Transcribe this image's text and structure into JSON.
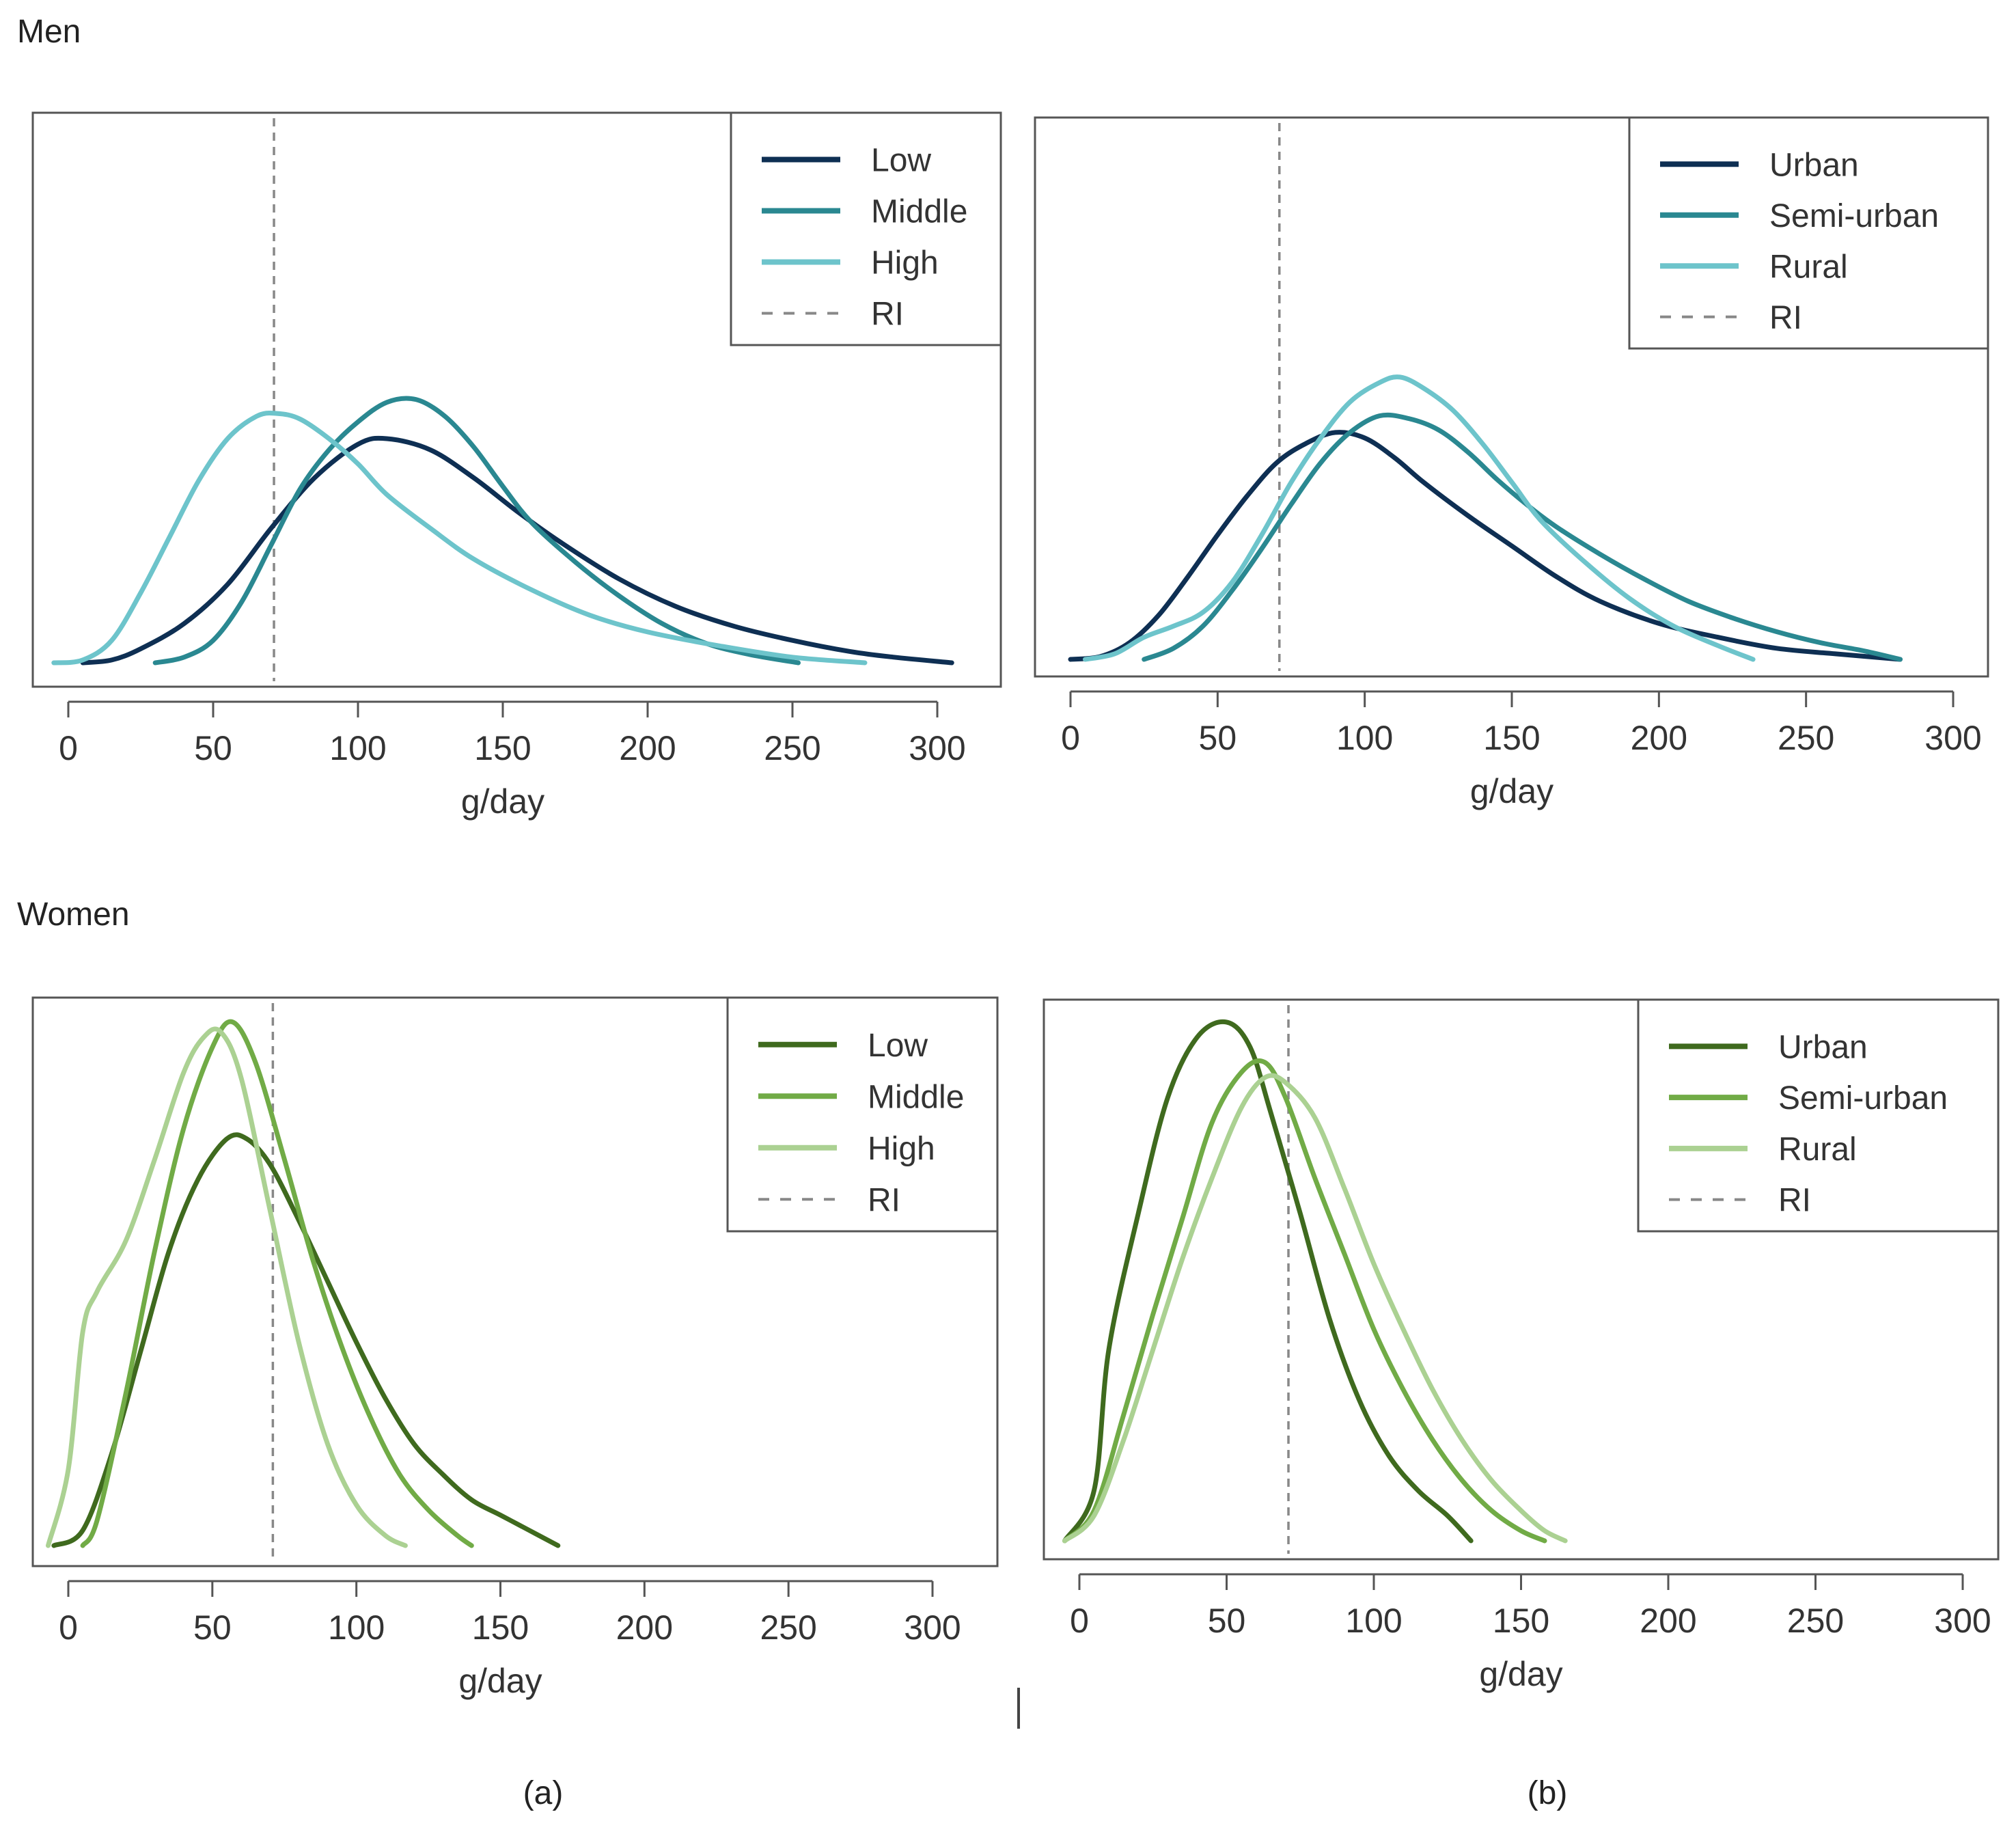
{
  "figure": {
    "section_men": "Men",
    "section_women": "Women",
    "caption_a": "(a)",
    "caption_b": "(b)"
  },
  "chart_data": [
    {
      "id": "men_a",
      "type": "line",
      "title": "",
      "xlabel": "g/day",
      "ylabel": "",
      "xlim": [
        0,
        300
      ],
      "xticks": [
        0,
        50,
        100,
        150,
        200,
        250,
        300
      ],
      "ylim": [
        0,
        1
      ],
      "reference_line": {
        "name": "RI",
        "x": 71
      },
      "legend": [
        "Low",
        "Middle",
        "High",
        "RI"
      ],
      "legend_position": "top-right",
      "series": [
        {
          "name": "Low",
          "color": "#0e2f53",
          "x": [
            5,
            15,
            25,
            40,
            55,
            70,
            85,
            100,
            110,
            125,
            140,
            155,
            170,
            190,
            210,
            230,
            250,
            270,
            285,
            305
          ],
          "y": [
            0,
            0.01,
            0.05,
            0.14,
            0.28,
            0.48,
            0.66,
            0.78,
            0.8,
            0.76,
            0.66,
            0.54,
            0.43,
            0.3,
            0.2,
            0.13,
            0.08,
            0.04,
            0.02,
            0
          ]
        },
        {
          "name": "Middle",
          "color": "#2a8891",
          "x": [
            30,
            40,
            50,
            60,
            70,
            80,
            90,
            100,
            110,
            120,
            130,
            140,
            150,
            160,
            175,
            190,
            205,
            220,
            235,
            252
          ],
          "y": [
            0,
            0.02,
            0.08,
            0.22,
            0.42,
            0.62,
            0.76,
            0.86,
            0.93,
            0.94,
            0.88,
            0.77,
            0.63,
            0.5,
            0.36,
            0.24,
            0.14,
            0.07,
            0.03,
            0
          ]
        },
        {
          "name": "High",
          "color": "#6dc4cb",
          "x": [
            -5,
            5,
            15,
            25,
            35,
            45,
            55,
            65,
            72,
            80,
            90,
            100,
            110,
            125,
            140,
            160,
            180,
            200,
            225,
            250,
            275
          ],
          "y": [
            0,
            0.01,
            0.08,
            0.25,
            0.45,
            0.65,
            0.8,
            0.88,
            0.89,
            0.87,
            0.8,
            0.71,
            0.6,
            0.48,
            0.37,
            0.26,
            0.17,
            0.11,
            0.06,
            0.02,
            0
          ]
        }
      ]
    },
    {
      "id": "men_b",
      "type": "line",
      "title": "",
      "xlabel": "g/day",
      "ylabel": "",
      "xlim": [
        0,
        300
      ],
      "xticks": [
        0,
        50,
        100,
        150,
        200,
        250,
        300
      ],
      "ylim": [
        0,
        1
      ],
      "reference_line": {
        "name": "RI",
        "x": 71
      },
      "legend": [
        "Urban",
        "Semi-urban",
        "Rural",
        "RI"
      ],
      "legend_position": "top-right",
      "series": [
        {
          "name": "Urban",
          "color": "#0e2f53",
          "x": [
            0,
            10,
            20,
            30,
            40,
            50,
            60,
            70,
            80,
            90,
            100,
            110,
            120,
            135,
            150,
            165,
            180,
            200,
            220,
            240,
            260,
            282
          ],
          "y": [
            0,
            0.01,
            0.06,
            0.16,
            0.3,
            0.45,
            0.59,
            0.71,
            0.78,
            0.82,
            0.8,
            0.73,
            0.64,
            0.52,
            0.41,
            0.3,
            0.21,
            0.13,
            0.08,
            0.04,
            0.02,
            0
          ]
        },
        {
          "name": "Semi-urban",
          "color": "#2a8891",
          "x": [
            25,
            35,
            45,
            55,
            65,
            75,
            85,
            95,
            105,
            115,
            125,
            135,
            145,
            155,
            165,
            180,
            195,
            210,
            225,
            240,
            255,
            270,
            282
          ],
          "y": [
            0,
            0.04,
            0.12,
            0.25,
            0.4,
            0.56,
            0.71,
            0.82,
            0.88,
            0.87,
            0.83,
            0.75,
            0.65,
            0.56,
            0.48,
            0.38,
            0.29,
            0.21,
            0.15,
            0.1,
            0.06,
            0.03,
            0
          ]
        },
        {
          "name": "Rural",
          "color": "#6dc4cb",
          "x": [
            5,
            15,
            25,
            35,
            45,
            55,
            65,
            75,
            85,
            95,
            105,
            112,
            120,
            130,
            140,
            150,
            160,
            175,
            190,
            205,
            220,
            232
          ],
          "y": [
            0,
            0.02,
            0.08,
            0.12,
            0.17,
            0.28,
            0.45,
            0.64,
            0.8,
            0.93,
            1.0,
            1.02,
            0.98,
            0.9,
            0.78,
            0.64,
            0.5,
            0.35,
            0.22,
            0.12,
            0.05,
            0
          ]
        }
      ]
    },
    {
      "id": "women_a",
      "type": "line",
      "title": "",
      "xlabel": "g/day",
      "ylabel": "",
      "xlim": [
        0,
        300
      ],
      "xticks": [
        0,
        50,
        100,
        150,
        200,
        250,
        300
      ],
      "ylim": [
        0,
        1
      ],
      "reference_line": {
        "name": "RI",
        "x": 71
      },
      "legend": [
        "Low",
        "Middle",
        "High",
        "RI"
      ],
      "legend_position": "top-right",
      "series": [
        {
          "name": "Low",
          "color": "#3f6a1e",
          "x": [
            -5,
            5,
            15,
            25,
            35,
            45,
            55,
            62,
            70,
            80,
            90,
            100,
            110,
            120,
            130,
            140,
            150,
            160,
            170
          ],
          "y": [
            0,
            0.03,
            0.18,
            0.38,
            0.58,
            0.72,
            0.8,
            0.8,
            0.75,
            0.64,
            0.52,
            0.4,
            0.29,
            0.2,
            0.14,
            0.09,
            0.06,
            0.03,
            0
          ]
        },
        {
          "name": "Middle",
          "color": "#71ab46",
          "x": [
            5,
            10,
            20,
            30,
            40,
            50,
            57,
            65,
            75,
            85,
            95,
            105,
            115,
            125,
            135,
            140
          ],
          "y": [
            0,
            0.05,
            0.3,
            0.58,
            0.82,
            0.98,
            1.03,
            0.95,
            0.76,
            0.56,
            0.39,
            0.25,
            0.14,
            0.07,
            0.02,
            0
          ]
        },
        {
          "name": "High",
          "color": "#abd192",
          "x": [
            -7,
            0,
            5,
            10,
            20,
            30,
            40,
            47,
            53,
            60,
            70,
            80,
            90,
            100,
            110,
            117
          ],
          "y": [
            0,
            0.15,
            0.42,
            0.5,
            0.6,
            0.76,
            0.93,
            1.0,
            1.01,
            0.92,
            0.66,
            0.4,
            0.2,
            0.08,
            0.02,
            0
          ]
        }
      ]
    },
    {
      "id": "women_b",
      "type": "line",
      "title": "",
      "xlabel": "g/day",
      "ylabel": "",
      "xlim": [
        0,
        300
      ],
      "xticks": [
        0,
        50,
        100,
        150,
        200,
        250,
        300
      ],
      "ylim": [
        0,
        1
      ],
      "reference_line": {
        "name": "RI",
        "x": 71
      },
      "legend": [
        "Urban",
        "Semi-urban",
        "Rural",
        "RI"
      ],
      "legend_position": "top-right",
      "series": [
        {
          "name": "Urban",
          "color": "#3f6a1e",
          "x": [
            -5,
            5,
            10,
            20,
            30,
            40,
            50,
            58,
            65,
            75,
            85,
            95,
            105,
            115,
            125,
            133
          ],
          "y": [
            0,
            0.1,
            0.38,
            0.65,
            0.88,
            1.0,
            1.03,
            0.98,
            0.85,
            0.65,
            0.44,
            0.28,
            0.17,
            0.1,
            0.05,
            0
          ]
        },
        {
          "name": "Semi-urban",
          "color": "#71ab46",
          "x": [
            -5,
            5,
            15,
            25,
            35,
            45,
            55,
            63,
            70,
            80,
            90,
            100,
            110,
            120,
            130,
            140,
            150,
            158
          ],
          "y": [
            0,
            0.06,
            0.25,
            0.45,
            0.64,
            0.83,
            0.93,
            0.95,
            0.88,
            0.72,
            0.57,
            0.42,
            0.3,
            0.2,
            0.12,
            0.06,
            0.02,
            0
          ]
        },
        {
          "name": "Rural",
          "color": "#abd192",
          "x": [
            -5,
            5,
            15,
            25,
            35,
            45,
            55,
            63,
            70,
            80,
            90,
            100,
            110,
            120,
            130,
            140,
            150,
            158,
            165
          ],
          "y": [
            0,
            0.05,
            0.2,
            0.38,
            0.56,
            0.72,
            0.86,
            0.92,
            0.91,
            0.84,
            0.7,
            0.55,
            0.42,
            0.3,
            0.2,
            0.12,
            0.06,
            0.02,
            0
          ]
        }
      ]
    }
  ]
}
